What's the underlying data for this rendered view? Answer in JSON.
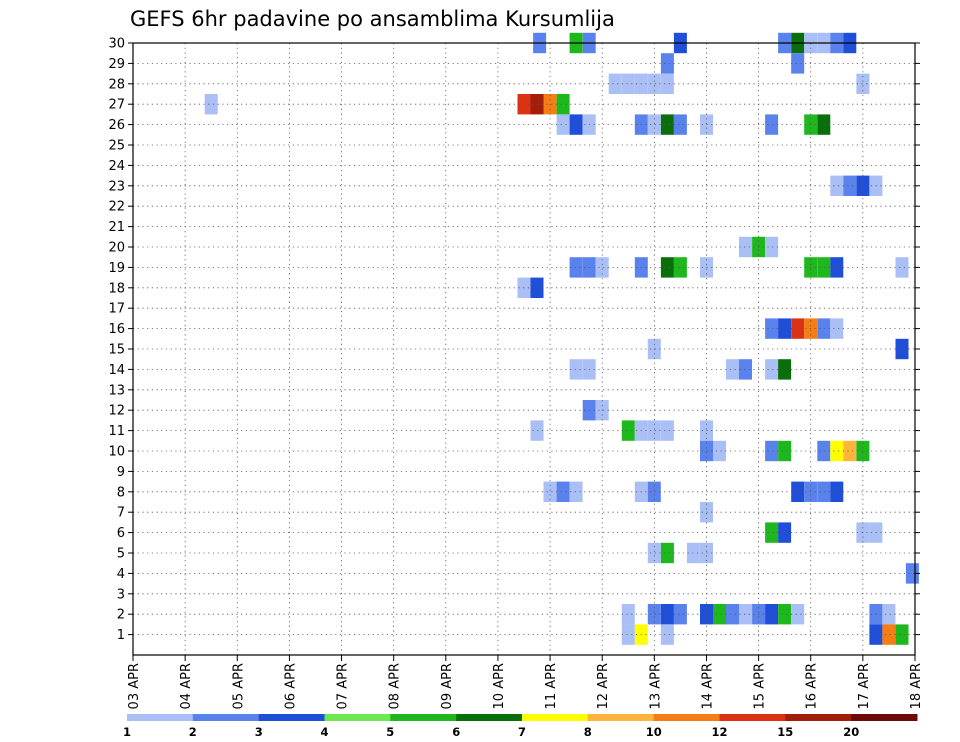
{
  "chart_data": {
    "type": "heatmap",
    "title": "GEFS 6hr padavine po ansamblima Kursumlija",
    "x_ticks": [
      "03 APR",
      "04 APR",
      "05 APR",
      "06 APR",
      "07 APR",
      "08 APR",
      "09 APR",
      "10 APR",
      "11 APR",
      "12 APR",
      "13 APR",
      "14 APR",
      "15 APR",
      "16 APR",
      "17 APR",
      "18 APR"
    ],
    "y_ticks": [
      1,
      2,
      3,
      4,
      5,
      6,
      7,
      8,
      9,
      10,
      11,
      12,
      13,
      14,
      15,
      16,
      17,
      18,
      19,
      20,
      21,
      22,
      23,
      24,
      25,
      26,
      27,
      28,
      29,
      30
    ],
    "y_range": [
      0,
      30
    ],
    "x_range_days": [
      0,
      15
    ],
    "grid": true,
    "legend": "bottom colorbar",
    "colorbar": {
      "labels": [
        "1",
        "2",
        "3",
        "4",
        "5",
        "6",
        "7",
        "8",
        "10",
        "12",
        "15",
        "20"
      ],
      "colors": [
        "#aabff5",
        "#5a82ec",
        "#1f4ed8",
        "#6ee850",
        "#1eb81e",
        "#0a6e0a",
        "#ffff00",
        "#ffb43c",
        "#f57d14",
        "#dc3214",
        "#a01e0a",
        "#6e0a0a"
      ]
    },
    "cells": [
      {
        "m": 30,
        "d": 7.8,
        "c": 2
      },
      {
        "m": 30,
        "d": 8.5,
        "c": 5
      },
      {
        "m": 30,
        "d": 8.75,
        "c": 2
      },
      {
        "m": 30,
        "d": 10.5,
        "c": 3
      },
      {
        "m": 30,
        "d": 12.5,
        "c": 2
      },
      {
        "m": 30,
        "d": 12.75,
        "c": 6
      },
      {
        "m": 30,
        "d": 13.0,
        "c": 1
      },
      {
        "m": 30,
        "d": 13.25,
        "c": 1
      },
      {
        "m": 30,
        "d": 13.5,
        "c": 2
      },
      {
        "m": 30,
        "d": 13.75,
        "c": 3
      },
      {
        "m": 29,
        "d": 10.25,
        "c": 2
      },
      {
        "m": 29,
        "d": 12.75,
        "c": 2
      },
      {
        "m": 28,
        "d": 9.25,
        "c": 1
      },
      {
        "m": 28,
        "d": 9.5,
        "c": 1
      },
      {
        "m": 28,
        "d": 9.75,
        "c": 1
      },
      {
        "m": 28,
        "d": 10.0,
        "c": 1
      },
      {
        "m": 28,
        "d": 10.25,
        "c": 1
      },
      {
        "m": 28,
        "d": 14.0,
        "c": 1
      },
      {
        "m": 27,
        "d": 1.5,
        "c": 1
      },
      {
        "m": 27,
        "d": 7.5,
        "c": 10
      },
      {
        "m": 27,
        "d": 7.75,
        "c": 11
      },
      {
        "m": 27,
        "d": 8.0,
        "c": 9
      },
      {
        "m": 27,
        "d": 8.25,
        "c": 5
      },
      {
        "m": 26,
        "d": 8.25,
        "c": 1
      },
      {
        "m": 26,
        "d": 8.5,
        "c": 3
      },
      {
        "m": 26,
        "d": 8.75,
        "c": 1
      },
      {
        "m": 26,
        "d": 9.75,
        "c": 2
      },
      {
        "m": 26,
        "d": 10.0,
        "c": 1
      },
      {
        "m": 26,
        "d": 10.25,
        "c": 6
      },
      {
        "m": 26,
        "d": 10.5,
        "c": 2
      },
      {
        "m": 26,
        "d": 11.0,
        "c": 1
      },
      {
        "m": 26,
        "d": 12.25,
        "c": 2
      },
      {
        "m": 26,
        "d": 13.0,
        "c": 5
      },
      {
        "m": 26,
        "d": 13.25,
        "c": 6
      },
      {
        "m": 23,
        "d": 13.5,
        "c": 1
      },
      {
        "m": 23,
        "d": 13.75,
        "c": 2
      },
      {
        "m": 23,
        "d": 14.0,
        "c": 3
      },
      {
        "m": 23,
        "d": 14.25,
        "c": 1
      },
      {
        "m": 20,
        "d": 11.75,
        "c": 1
      },
      {
        "m": 20,
        "d": 12.0,
        "c": 5
      },
      {
        "m": 20,
        "d": 12.25,
        "c": 1
      },
      {
        "m": 19,
        "d": 8.5,
        "c": 2
      },
      {
        "m": 19,
        "d": 8.75,
        "c": 2
      },
      {
        "m": 19,
        "d": 9.0,
        "c": 1
      },
      {
        "m": 19,
        "d": 9.75,
        "c": 2
      },
      {
        "m": 19,
        "d": 10.25,
        "c": 6
      },
      {
        "m": 19,
        "d": 10.5,
        "c": 5
      },
      {
        "m": 19,
        "d": 11.0,
        "c": 1
      },
      {
        "m": 19,
        "d": 13.0,
        "c": 5
      },
      {
        "m": 19,
        "d": 13.25,
        "c": 5
      },
      {
        "m": 19,
        "d": 13.5,
        "c": 3
      },
      {
        "m": 19,
        "d": 14.75,
        "c": 1
      },
      {
        "m": 18,
        "d": 7.5,
        "c": 1
      },
      {
        "m": 18,
        "d": 7.75,
        "c": 3
      },
      {
        "m": 16,
        "d": 12.25,
        "c": 2
      },
      {
        "m": 16,
        "d": 12.5,
        "c": 3
      },
      {
        "m": 16,
        "d": 12.75,
        "c": 10
      },
      {
        "m": 16,
        "d": 13.0,
        "c": 9
      },
      {
        "m": 16,
        "d": 13.25,
        "c": 2
      },
      {
        "m": 16,
        "d": 13.5,
        "c": 1
      },
      {
        "m": 15,
        "d": 10.0,
        "c": 1
      },
      {
        "m": 15,
        "d": 14.75,
        "c": 3
      },
      {
        "m": 14,
        "d": 8.5,
        "c": 1
      },
      {
        "m": 14,
        "d": 8.75,
        "c": 1
      },
      {
        "m": 14,
        "d": 11.5,
        "c": 1
      },
      {
        "m": 14,
        "d": 11.75,
        "c": 2
      },
      {
        "m": 14,
        "d": 12.25,
        "c": 1
      },
      {
        "m": 14,
        "d": 12.5,
        "c": 6
      },
      {
        "m": 12,
        "d": 8.75,
        "c": 2
      },
      {
        "m": 12,
        "d": 9.0,
        "c": 1
      },
      {
        "m": 11,
        "d": 7.75,
        "c": 1
      },
      {
        "m": 11,
        "d": 9.5,
        "c": 5
      },
      {
        "m": 11,
        "d": 9.75,
        "c": 1
      },
      {
        "m": 11,
        "d": 10.0,
        "c": 1
      },
      {
        "m": 11,
        "d": 10.25,
        "c": 1
      },
      {
        "m": 11,
        "d": 11.0,
        "c": 1
      },
      {
        "m": 10,
        "d": 11.0,
        "c": 2
      },
      {
        "m": 10,
        "d": 11.25,
        "c": 1
      },
      {
        "m": 10,
        "d": 12.25,
        "c": 2
      },
      {
        "m": 10,
        "d": 12.5,
        "c": 5
      },
      {
        "m": 10,
        "d": 13.25,
        "c": 2
      },
      {
        "m": 10,
        "d": 13.5,
        "c": 7
      },
      {
        "m": 10,
        "d": 13.75,
        "c": 8
      },
      {
        "m": 10,
        "d": 14.0,
        "c": 5
      },
      {
        "m": 8,
        "d": 8.0,
        "c": 1
      },
      {
        "m": 8,
        "d": 8.25,
        "c": 2
      },
      {
        "m": 8,
        "d": 8.5,
        "c": 1
      },
      {
        "m": 8,
        "d": 9.75,
        "c": 1
      },
      {
        "m": 8,
        "d": 10.0,
        "c": 2
      },
      {
        "m": 8,
        "d": 12.75,
        "c": 3
      },
      {
        "m": 8,
        "d": 13.0,
        "c": 2
      },
      {
        "m": 8,
        "d": 13.25,
        "c": 2
      },
      {
        "m": 8,
        "d": 13.5,
        "c": 3
      },
      {
        "m": 7,
        "d": 11.0,
        "c": 1
      },
      {
        "m": 6,
        "d": 12.25,
        "c": 5
      },
      {
        "m": 6,
        "d": 12.5,
        "c": 3
      },
      {
        "m": 6,
        "d": 14.0,
        "c": 1
      },
      {
        "m": 6,
        "d": 14.25,
        "c": 1
      },
      {
        "m": 5,
        "d": 10.0,
        "c": 1
      },
      {
        "m": 5,
        "d": 10.25,
        "c": 5
      },
      {
        "m": 5,
        "d": 10.75,
        "c": 1
      },
      {
        "m": 5,
        "d": 11.0,
        "c": 1
      },
      {
        "m": 4,
        "d": 14.95,
        "c": 2
      },
      {
        "m": 2,
        "d": 9.5,
        "c": 1
      },
      {
        "m": 2,
        "d": 10.0,
        "c": 2
      },
      {
        "m": 2,
        "d": 10.25,
        "c": 3
      },
      {
        "m": 2,
        "d": 10.5,
        "c": 2
      },
      {
        "m": 2,
        "d": 11.0,
        "c": 3
      },
      {
        "m": 2,
        "d": 11.25,
        "c": 5
      },
      {
        "m": 2,
        "d": 11.5,
        "c": 2
      },
      {
        "m": 2,
        "d": 11.75,
        "c": 1
      },
      {
        "m": 2,
        "d": 12.0,
        "c": 2
      },
      {
        "m": 2,
        "d": 12.25,
        "c": 3
      },
      {
        "m": 2,
        "d": 12.5,
        "c": 5
      },
      {
        "m": 2,
        "d": 12.75,
        "c": 1
      },
      {
        "m": 2,
        "d": 14.25,
        "c": 2
      },
      {
        "m": 2,
        "d": 14.5,
        "c": 1
      },
      {
        "m": 1,
        "d": 9.5,
        "c": 1
      },
      {
        "m": 1,
        "d": 9.75,
        "c": 7
      },
      {
        "m": 1,
        "d": 10.25,
        "c": 1
      },
      {
        "m": 1,
        "d": 14.25,
        "c": 3
      },
      {
        "m": 1,
        "d": 14.5,
        "c": 9
      },
      {
        "m": 1,
        "d": 14.75,
        "c": 5
      }
    ]
  }
}
